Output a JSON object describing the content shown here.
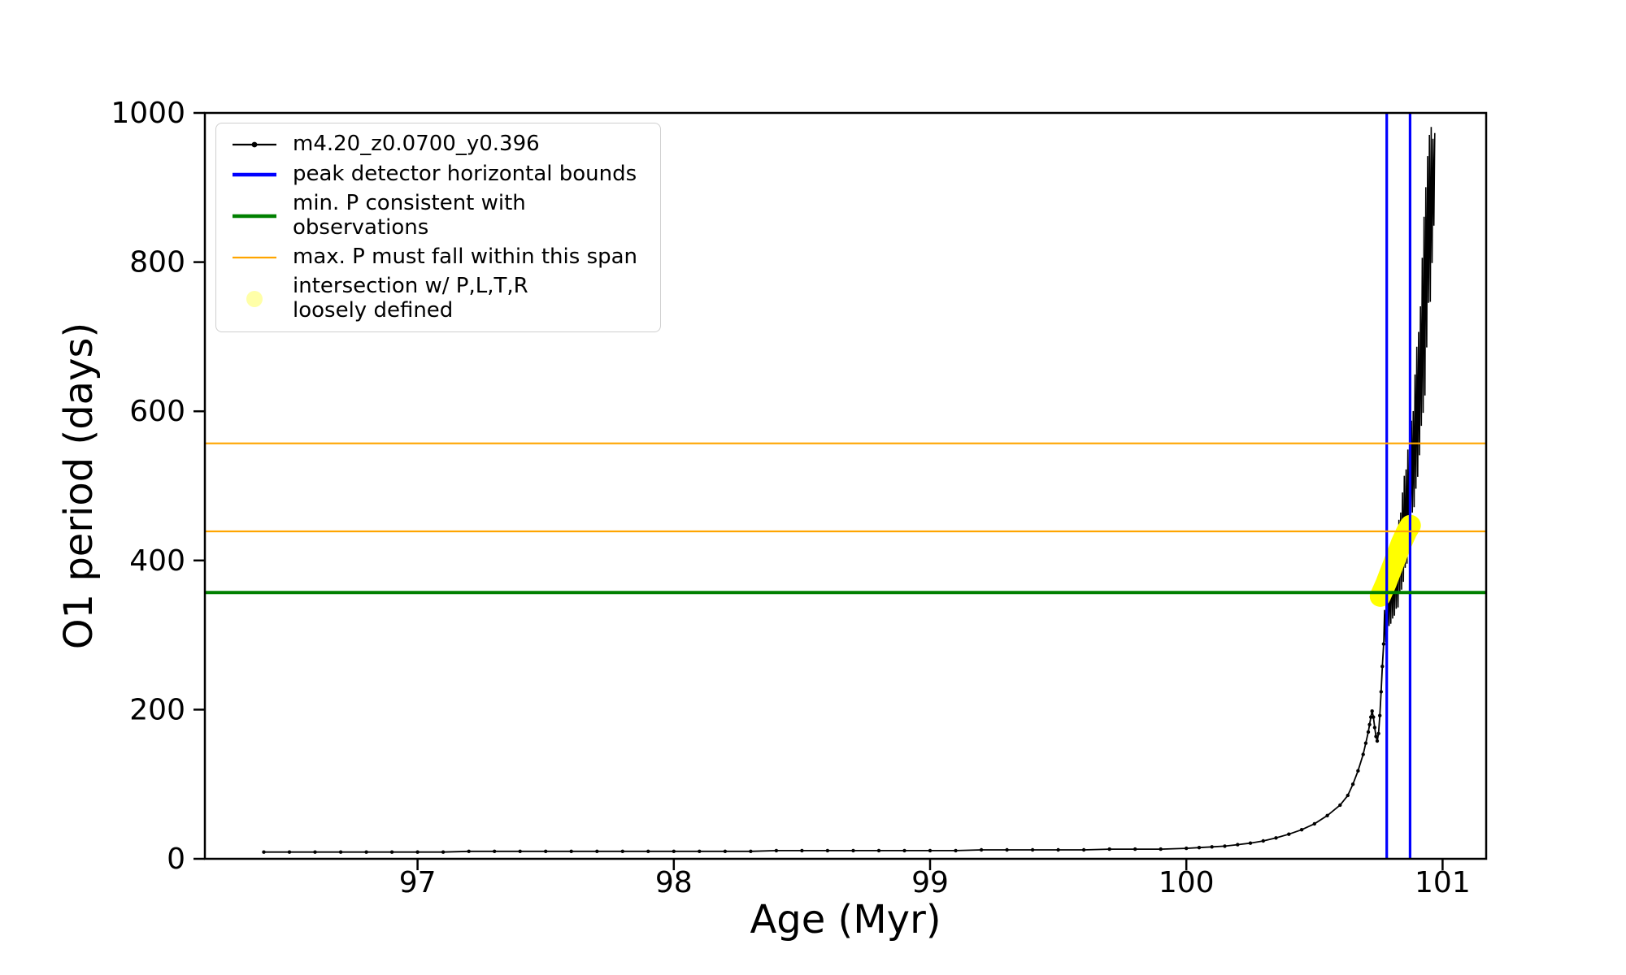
{
  "figure": {
    "background": "#ffffff"
  },
  "chart_data": {
    "type": "line",
    "title": "",
    "xlabel": "Age (Myr)",
    "ylabel": "O1 period (days)",
    "xlim": [
      96.17,
      101.17
    ],
    "ylim": [
      0,
      1000
    ],
    "grid": false,
    "legend_position": "upper-left",
    "xticks": [
      97,
      98,
      99,
      100,
      101
    ],
    "yticks": [
      0,
      200,
      400,
      600,
      800,
      1000
    ],
    "series": [
      {
        "name": "m4.20_z0.0700_y0.396",
        "color": "#000000",
        "style": "line+markers",
        "points": [
          [
            96.4,
            9
          ],
          [
            96.5,
            9
          ],
          [
            96.6,
            9
          ],
          [
            96.7,
            9
          ],
          [
            96.8,
            9
          ],
          [
            96.9,
            9
          ],
          [
            97.0,
            9
          ],
          [
            97.1,
            9
          ],
          [
            97.2,
            10
          ],
          [
            97.3,
            10
          ],
          [
            97.4,
            10
          ],
          [
            97.5,
            10
          ],
          [
            97.6,
            10
          ],
          [
            97.7,
            10
          ],
          [
            97.8,
            10
          ],
          [
            97.9,
            10
          ],
          [
            98.0,
            10
          ],
          [
            98.1,
            10
          ],
          [
            98.2,
            10
          ],
          [
            98.3,
            10
          ],
          [
            98.4,
            11
          ],
          [
            98.5,
            11
          ],
          [
            98.6,
            11
          ],
          [
            98.7,
            11
          ],
          [
            98.8,
            11
          ],
          [
            98.9,
            11
          ],
          [
            99.0,
            11
          ],
          [
            99.1,
            11
          ],
          [
            99.2,
            12
          ],
          [
            99.3,
            12
          ],
          [
            99.4,
            12
          ],
          [
            99.5,
            12
          ],
          [
            99.6,
            12
          ],
          [
            99.7,
            13
          ],
          [
            99.8,
            13
          ],
          [
            99.9,
            13
          ],
          [
            100.0,
            14
          ],
          [
            100.05,
            15
          ],
          [
            100.1,
            16
          ],
          [
            100.15,
            17
          ],
          [
            100.2,
            19
          ],
          [
            100.25,
            21
          ],
          [
            100.3,
            24
          ],
          [
            100.35,
            28
          ],
          [
            100.4,
            33
          ],
          [
            100.45,
            39
          ],
          [
            100.5,
            47
          ],
          [
            100.55,
            58
          ],
          [
            100.6,
            72
          ],
          [
            100.63,
            85
          ],
          [
            100.65,
            100
          ],
          [
            100.67,
            118
          ],
          [
            100.69,
            140
          ],
          [
            100.7,
            155
          ],
          [
            100.71,
            170
          ],
          [
            100.715,
            180
          ],
          [
            100.72,
            190
          ],
          [
            100.725,
            198
          ],
          [
            100.73,
            190
          ],
          [
            100.735,
            176
          ],
          [
            100.74,
            164
          ],
          [
            100.745,
            158
          ],
          [
            100.75,
            168
          ],
          [
            100.755,
            192
          ],
          [
            100.76,
            224
          ],
          [
            100.765,
            258
          ],
          [
            100.77,
            288
          ]
        ]
      }
    ],
    "oscillation": {
      "comment": "dense rapid oscillation of O1 period near end of track, envelope triplets [age, min_period, max_period]",
      "color": "#000000",
      "half_period": 0.0035,
      "envelope": [
        [
          100.77,
          285,
          325
        ],
        [
          100.78,
          292,
          358
        ],
        [
          100.79,
          298,
          380
        ],
        [
          100.8,
          305,
          402
        ],
        [
          100.81,
          315,
          424
        ],
        [
          100.82,
          326,
          446
        ],
        [
          100.83,
          340,
          467
        ],
        [
          100.84,
          354,
          490
        ],
        [
          100.85,
          370,
          514
        ],
        [
          100.86,
          388,
          540
        ],
        [
          100.87,
          408,
          568
        ],
        [
          100.88,
          430,
          602
        ],
        [
          100.89,
          455,
          642
        ],
        [
          100.9,
          485,
          692
        ],
        [
          100.91,
          522,
          752
        ],
        [
          100.92,
          565,
          822
        ],
        [
          100.93,
          615,
          907
        ],
        [
          100.94,
          670,
          985
        ],
        [
          100.945,
          700,
          995
        ],
        [
          100.95,
          725,
          995
        ],
        [
          100.96,
          792,
          995
        ],
        [
          100.97,
          862,
          995
        ]
      ]
    },
    "vlines": {
      "label": "peak detector horizontal bounds",
      "color": "#0000ff",
      "width": 3.2,
      "x": [
        100.782,
        100.873
      ]
    },
    "hlines": [
      {
        "name": "min-period-hline",
        "label": "min. P consistent with observations",
        "color": "#008000",
        "width": 4,
        "y": [
          357
        ]
      },
      {
        "name": "max-period-hline",
        "label": "max. P must fall within this span",
        "color": "#ffa500",
        "width": 2.2,
        "y": [
          439,
          557
        ]
      }
    ],
    "highlight": {
      "label": "intersection w/ P,L,T,R loosely defined",
      "color": "#ffff00",
      "stroke_width": 26,
      "points": [
        [
          100.757,
          352
        ],
        [
          100.78,
          370
        ],
        [
          100.8,
          388
        ],
        [
          100.82,
          406
        ],
        [
          100.84,
          424
        ],
        [
          100.86,
          439
        ],
        [
          100.874,
          447
        ]
      ]
    },
    "legend": {
      "entries": [
        {
          "label": "m4.20_z0.0700_y0.396",
          "swatch": "line-marker",
          "color": "#000000"
        },
        {
          "label": "peak detector horizontal bounds",
          "swatch": "thick-line",
          "color": "#0000ff"
        },
        {
          "label": "min. P consistent with observations",
          "swatch": "thick-line",
          "color": "#008000"
        },
        {
          "label": "max. P must fall within this span",
          "swatch": "line",
          "color": "#ffa500"
        },
        {
          "label": "intersection w/ P,L,T,R\nloosely defined",
          "swatch": "dot",
          "color": "#ffffa8"
        }
      ]
    }
  }
}
